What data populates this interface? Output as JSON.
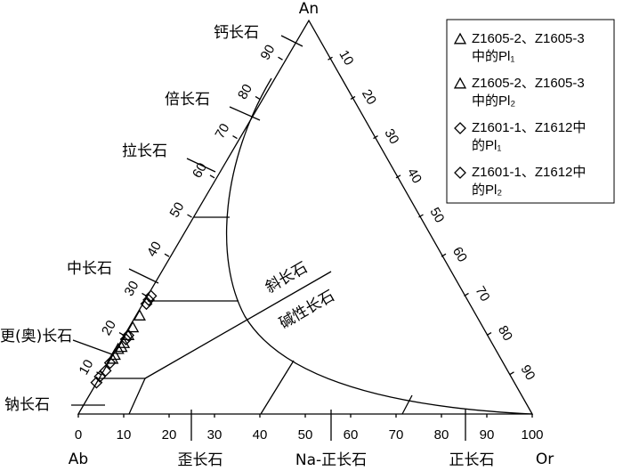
{
  "chart_data": {
    "type": "ternary",
    "vertices": {
      "top": "An",
      "left": "Ab",
      "right": "Or"
    },
    "bottom_ticks": [
      0,
      10,
      20,
      30,
      40,
      50,
      60,
      70,
      80,
      90,
      100
    ],
    "left_ticks": [
      10,
      20,
      30,
      40,
      50,
      60,
      70,
      80,
      90
    ],
    "right_ticks": [
      10,
      20,
      30,
      40,
      50,
      60,
      70,
      80,
      90
    ],
    "plagioclase_fields": [
      "钙长石",
      "倍长石",
      "拉长石",
      "中长石",
      "更(奥)长石",
      "钠长石"
    ],
    "alkali_fields": [
      "歪长石",
      "Na-正长石",
      "正长石"
    ],
    "regions": [
      "斜长石",
      "碱性长石"
    ],
    "series": [
      {
        "name_lines": [
          "Z1605-2、Z1605-3",
          "中的Pl₁"
        ],
        "marker": "triangle",
        "filled": true,
        "an": [
          25,
          22,
          20,
          18,
          17
        ],
        "or": [
          1,
          1,
          1,
          1,
          1
        ]
      },
      {
        "name_lines": [
          "Z1605-2、Z1605-3",
          "中的Pl₂"
        ],
        "marker": "triangle",
        "filled": false,
        "an": [
          16.5,
          15,
          14
        ],
        "or": [
          0.5,
          0.5,
          0.5
        ]
      },
      {
        "name_lines": [
          "Z1601-1、Z1612中",
          "的Pl₁"
        ],
        "marker": "diamond",
        "filled": true,
        "an": [
          30,
          29,
          28,
          20,
          19
        ],
        "or": [
          1,
          1,
          1,
          1,
          1
        ]
      },
      {
        "name_lines": [
          "Z1601-1、Z1612中",
          "的Pl₂"
        ],
        "marker": "diamond",
        "filled": false,
        "an": [
          8,
          9.5,
          11,
          13
        ],
        "or": [
          0,
          0,
          0.5,
          0.5
        ]
      }
    ]
  }
}
